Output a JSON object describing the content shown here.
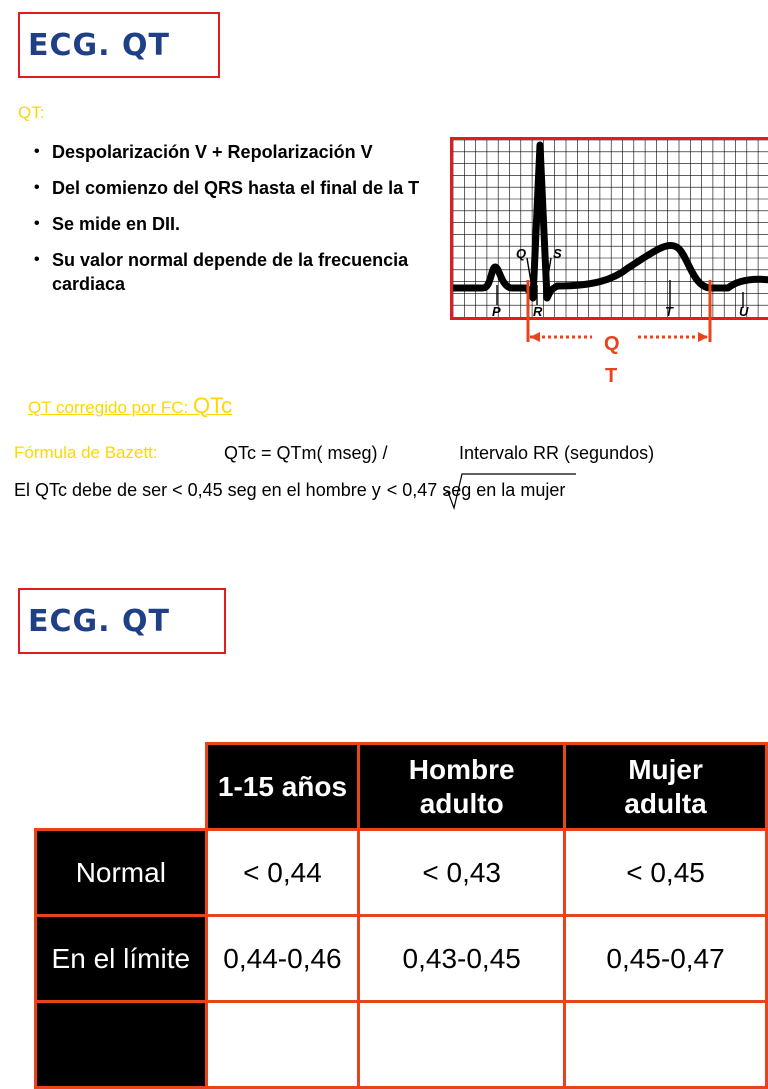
{
  "slide1": {
    "title": "ECG. QT",
    "section_label": "QT:",
    "bullets": [
      {
        "text": "Despolarización V + Repolarización V"
      },
      {
        "text": "Del comienzo del QRS hasta el final de la T"
      },
      {
        "text": "Se mide en DII."
      },
      {
        "text": "Su valor normal depende de la frecuencia cardiaca"
      }
    ],
    "ecg_labels": {
      "p1": "P",
      "q": "Q",
      "r": "R",
      "s": "S",
      "t": "T",
      "u": "U"
    },
    "qt_marker": {
      "q": "Q",
      "t": "T"
    },
    "corrected_label": "QT corregido por FC: ",
    "corrected_symbol": "QTc",
    "formula_label": "Fórmula de Bazett:",
    "formula_text": "QTc = QTm( mseg) /",
    "formula_denominator": "Intervalo RR (segundos)",
    "qtc_note_a": "El QTc debe de ser <  0,45 seg en el hombre ",
    "qtc_note_y": "y",
    "qtc_note_b": "< 0,47 seg en la mujer"
  },
  "slide2": {
    "title": "ECG. QT",
    "table": {
      "headers": [
        "1-15 años",
        "Hombre adulto",
        "Mujer adulta"
      ],
      "rows": [
        {
          "label": "Normal",
          "values": [
            "< 0,44",
            "< 0,43",
            "< 0,45"
          ]
        },
        {
          "label": "En el límite",
          "values": [
            "0,44-0,46",
            "0,43-0,45",
            "0,45-0,47"
          ]
        },
        {
          "label": "",
          "values": [
            "",
            "",
            ""
          ]
        }
      ]
    }
  },
  "colors": {
    "title_blue": "#1f3f87",
    "accent_red": "#e11b22",
    "label_yellow": "#ffd700",
    "table_border": "#e8431c"
  }
}
